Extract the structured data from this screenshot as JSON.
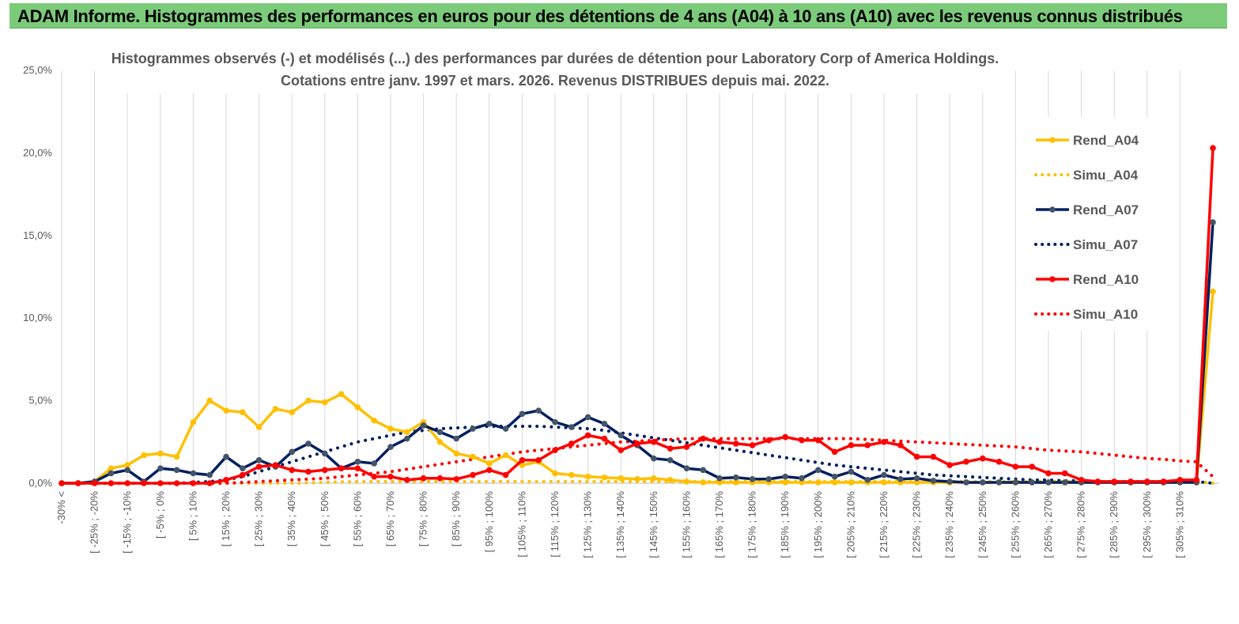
{
  "header": {
    "title": "ADAM Informe. Histogrammes des performances en euros pour des détentions de 4 ans (A04) à 10 ans (A10) avec les revenus connus distribués"
  },
  "chart_data": {
    "type": "line",
    "title_line1": "Histogrammes observés (-) et modélisés (...) des performances par durées de détention pour Laboratory Corp of America Holdings.",
    "title_line2": "Cotations entre janv. 1997 et mars. 2026. Revenus DISTRIBUES depuis mai. 2022.",
    "xlabel": "",
    "ylabel": "",
    "ylim": [
      0,
      25
    ],
    "y_ticks": [
      "0,0%",
      "5,0%",
      "10,0%",
      "15,0%",
      "20,0%",
      "25,0%"
    ],
    "x_tick_labels": [
      "-30% <",
      "[ -25% ; -20%",
      "[ -15% ; -10%",
      "[ -5% ; 0%",
      "[ 5% ; 10%",
      "[ 15% ; 20%",
      "[ 25% ; 30%",
      "[ 35% ; 40%",
      "[ 45% ; 50%",
      "[ 55% ; 60%",
      "[ 65% ; 70%",
      "[ 75% ; 80%",
      "[ 85% ; 90%",
      "[ 95% ; 100%",
      "[ 105% ; 110%",
      "[ 115% ; 120%",
      "[ 125% ; 130%",
      "[ 135% ; 140%",
      "[ 145% ; 150%",
      "[ 155% ; 160%",
      "[ 165% ; 170%",
      "[ 175% ; 180%",
      "[ 185% ; 190%",
      "[ 195% ; 200%",
      "[ 205% ; 210%",
      "[ 215% ; 220%",
      "[ 225% ; 230%",
      "[ 235% ; 240%",
      "[ 245% ; 250%",
      "[ 255% ; 260%",
      "[ 265% ; 270%",
      "[ 275% ; 280%",
      "[ 285% ; 290%",
      "[ 295% ; 300%",
      "[ 305% ; 310%"
    ],
    "grid": "vertical",
    "legend_position": "right",
    "series": [
      {
        "name": "Rend_A04",
        "style": "solid",
        "color": "#ffc000",
        "values": [
          0,
          0,
          0.1,
          0.9,
          1.1,
          1.7,
          1.8,
          1.6,
          3.7,
          5.0,
          4.4,
          4.3,
          3.4,
          4.5,
          4.3,
          5.0,
          4.9,
          5.4,
          4.6,
          3.8,
          3.3,
          3.1,
          3.7,
          2.5,
          1.8,
          1.6,
          1.2,
          1.7,
          1.1,
          1.3,
          0.6,
          0.5,
          0.4,
          0.35,
          0.3,
          0.25,
          0.3,
          0.2,
          0.1,
          0.05,
          0.05,
          0.05,
          0.05,
          0.05,
          0.05,
          0.05,
          0.05,
          0.05,
          0.05,
          0.05,
          0.05,
          0.05,
          0.05,
          0.05,
          0.05,
          0.05,
          0.05,
          0.05,
          0.05,
          0.05,
          0.05,
          0.05,
          0.05,
          0.05,
          0.05,
          0.05,
          0.05,
          0.05,
          0.05,
          0.05,
          11.6
        ]
      },
      {
        "name": "Simu_A04",
        "style": "dotted",
        "color": "#ffc000",
        "values": [
          0,
          0,
          0,
          0,
          0,
          0,
          0,
          0,
          0,
          0,
          0,
          0,
          0,
          0,
          0,
          0.02,
          0.05,
          0.08,
          0.1,
          0.1,
          0.1,
          0.1,
          0.1,
          0.1,
          0.1,
          0.1,
          0.1,
          0.1,
          0.1,
          0.1,
          0.1,
          0.1,
          0.1,
          0.1,
          0.1,
          0.1,
          0.1,
          0.1,
          0.1,
          0.1,
          0.1,
          0.1,
          0.1,
          0.1,
          0.1,
          0.1,
          0.1,
          0.1,
          0.1,
          0.1,
          0.1,
          0.1,
          0.1,
          0.1,
          0.1,
          0.1,
          0.1,
          0.1,
          0.1,
          0.1,
          0.1,
          0.1,
          0.1,
          0.1,
          0.1,
          0.1,
          0.1,
          0.1,
          0.1,
          0.1,
          0
        ]
      },
      {
        "name": "Rend_A07",
        "style": "solid",
        "color": "#002060",
        "values": [
          0,
          0,
          0.1,
          0.6,
          0.8,
          0.1,
          0.9,
          0.8,
          0.6,
          0.5,
          1.6,
          0.9,
          1.4,
          1.0,
          1.9,
          2.4,
          1.8,
          0.9,
          1.3,
          1.2,
          2.2,
          2.7,
          3.5,
          3.1,
          2.7,
          3.3,
          3.6,
          3.3,
          4.2,
          4.4,
          3.7,
          3.4,
          4.0,
          3.6,
          2.9,
          2.3,
          1.5,
          1.4,
          0.9,
          0.8,
          0.3,
          0.35,
          0.25,
          0.25,
          0.4,
          0.3,
          0.8,
          0.4,
          0.7,
          0.2,
          0.5,
          0.25,
          0.3,
          0.15,
          0.1,
          0.05,
          0.05,
          0.05,
          0.05,
          0.05,
          0.05,
          0.05,
          0.05,
          0.05,
          0.05,
          0.05,
          0.05,
          0.05,
          0.05,
          0.05,
          15.8
        ]
      },
      {
        "name": "Simu_A07",
        "style": "dotted",
        "color": "#002060",
        "values": [
          0,
          0,
          0,
          0,
          0,
          0,
          0,
          0,
          0.05,
          0.1,
          0.2,
          0.4,
          0.7,
          1.0,
          1.3,
          1.6,
          1.9,
          2.2,
          2.5,
          2.7,
          2.9,
          3.1,
          3.2,
          3.3,
          3.35,
          3.4,
          3.45,
          3.45,
          3.45,
          3.45,
          3.4,
          3.35,
          3.3,
          3.2,
          3.05,
          2.9,
          2.75,
          2.6,
          2.45,
          2.3,
          2.15,
          2.0,
          1.85,
          1.7,
          1.55,
          1.4,
          1.25,
          1.1,
          1.0,
          0.9,
          0.8,
          0.7,
          0.6,
          0.5,
          0.45,
          0.4,
          0.35,
          0.3,
          0.25,
          0.2,
          0.2,
          0.15,
          0.15,
          0.1,
          0.1,
          0.1,
          0.1,
          0.1,
          0.1,
          0.1,
          0
        ]
      },
      {
        "name": "Rend_A10",
        "style": "solid",
        "color": "#ff0000",
        "values": [
          0,
          0,
          0,
          0,
          0,
          0,
          0,
          0,
          0,
          0,
          0.2,
          0.5,
          1.0,
          1.1,
          0.8,
          0.7,
          0.8,
          0.9,
          0.9,
          0.4,
          0.4,
          0.2,
          0.3,
          0.3,
          0.25,
          0.5,
          0.8,
          0.5,
          1.4,
          1.4,
          2.0,
          2.4,
          2.9,
          2.7,
          2.0,
          2.4,
          2.5,
          2.1,
          2.2,
          2.7,
          2.5,
          2.4,
          2.3,
          2.6,
          2.8,
          2.6,
          2.6,
          1.9,
          2.3,
          2.3,
          2.5,
          2.3,
          1.6,
          1.6,
          1.1,
          1.3,
          1.5,
          1.3,
          1.0,
          1.0,
          0.6,
          0.6,
          0.2,
          0.1,
          0.1,
          0.1,
          0.1,
          0.1,
          0.2,
          0.2,
          20.3
        ]
      },
      {
        "name": "Simu_A10",
        "style": "dotted",
        "color": "#ff0000",
        "values": [
          0,
          0,
          0,
          0,
          0,
          0,
          0,
          0,
          0,
          0,
          0,
          0.05,
          0.1,
          0.15,
          0.2,
          0.25,
          0.3,
          0.4,
          0.5,
          0.6,
          0.7,
          0.85,
          1.0,
          1.15,
          1.3,
          1.45,
          1.6,
          1.75,
          1.9,
          2.0,
          2.1,
          2.2,
          2.3,
          2.4,
          2.5,
          2.55,
          2.6,
          2.65,
          2.7,
          2.7,
          2.7,
          2.7,
          2.7,
          2.7,
          2.7,
          2.7,
          2.7,
          2.7,
          2.7,
          2.65,
          2.6,
          2.55,
          2.5,
          2.45,
          2.4,
          2.35,
          2.3,
          2.25,
          2.2,
          2.1,
          2.0,
          1.95,
          1.9,
          1.8,
          1.7,
          1.6,
          1.5,
          1.45,
          1.35,
          1.3,
          0.4
        ]
      }
    ]
  }
}
